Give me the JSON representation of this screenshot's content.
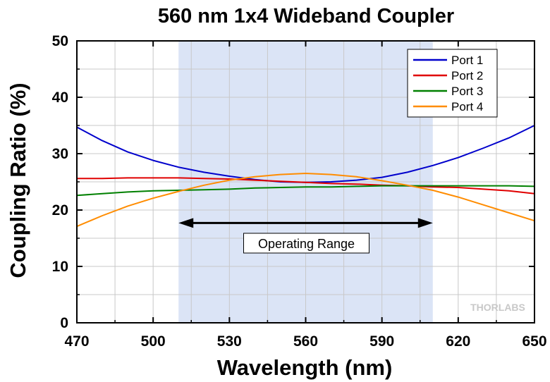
{
  "chart_data": {
    "type": "line",
    "title": "560 nm 1x4 Wideband Coupler",
    "xlabel": "Wavelength (nm)",
    "ylabel": "Coupling Ratio (%)",
    "xlim": [
      470,
      650
    ],
    "ylim": [
      0,
      50
    ],
    "xticks": [
      470,
      500,
      530,
      560,
      590,
      620,
      650
    ],
    "yticks": [
      0,
      10,
      20,
      30,
      40,
      50
    ],
    "grid": true,
    "legend_position": "top-right",
    "shaded_region": {
      "x": [
        510,
        610
      ],
      "color": "#dbe4f6"
    },
    "annotation": {
      "text": "Operating Range",
      "x_range": [
        510,
        610
      ],
      "y": 17.7
    },
    "logo": "THORLABS",
    "series": [
      {
        "name": "Port 1",
        "color": "#0000cc",
        "x": [
          470,
          480,
          490,
          500,
          510,
          520,
          530,
          540,
          550,
          560,
          570,
          580,
          590,
          600,
          610,
          620,
          630,
          640,
          650
        ],
        "y": [
          34.7,
          32.3,
          30.3,
          28.8,
          27.6,
          26.7,
          26.0,
          25.4,
          25.0,
          24.9,
          25.0,
          25.3,
          25.8,
          26.7,
          27.9,
          29.3,
          31.0,
          32.8,
          35.0
        ]
      },
      {
        "name": "Port 2",
        "color": "#e00000",
        "x": [
          470,
          480,
          490,
          500,
          510,
          520,
          530,
          540,
          550,
          560,
          570,
          580,
          590,
          600,
          610,
          620,
          630,
          640,
          650
        ],
        "y": [
          25.6,
          25.6,
          25.7,
          25.7,
          25.7,
          25.6,
          25.5,
          25.3,
          25.1,
          24.9,
          24.7,
          24.6,
          24.4,
          24.3,
          24.1,
          24.0,
          23.7,
          23.4,
          22.9
        ]
      },
      {
        "name": "Port 3",
        "color": "#008000",
        "x": [
          470,
          480,
          490,
          500,
          510,
          520,
          530,
          540,
          550,
          560,
          570,
          580,
          590,
          600,
          610,
          620,
          630,
          640,
          650
        ],
        "y": [
          22.6,
          22.9,
          23.2,
          23.4,
          23.5,
          23.6,
          23.7,
          23.9,
          24.0,
          24.1,
          24.1,
          24.2,
          24.3,
          24.3,
          24.3,
          24.3,
          24.3,
          24.3,
          24.2
        ]
      },
      {
        "name": "Port 4",
        "color": "#ff8c00",
        "x": [
          470,
          480,
          490,
          500,
          510,
          520,
          530,
          540,
          550,
          560,
          570,
          580,
          590,
          600,
          610,
          620,
          630,
          640,
          650
        ],
        "y": [
          17.1,
          19.0,
          20.7,
          22.1,
          23.3,
          24.4,
          25.3,
          25.9,
          26.3,
          26.5,
          26.3,
          25.9,
          25.2,
          24.4,
          23.5,
          22.3,
          20.9,
          19.5,
          18.1
        ]
      }
    ]
  }
}
